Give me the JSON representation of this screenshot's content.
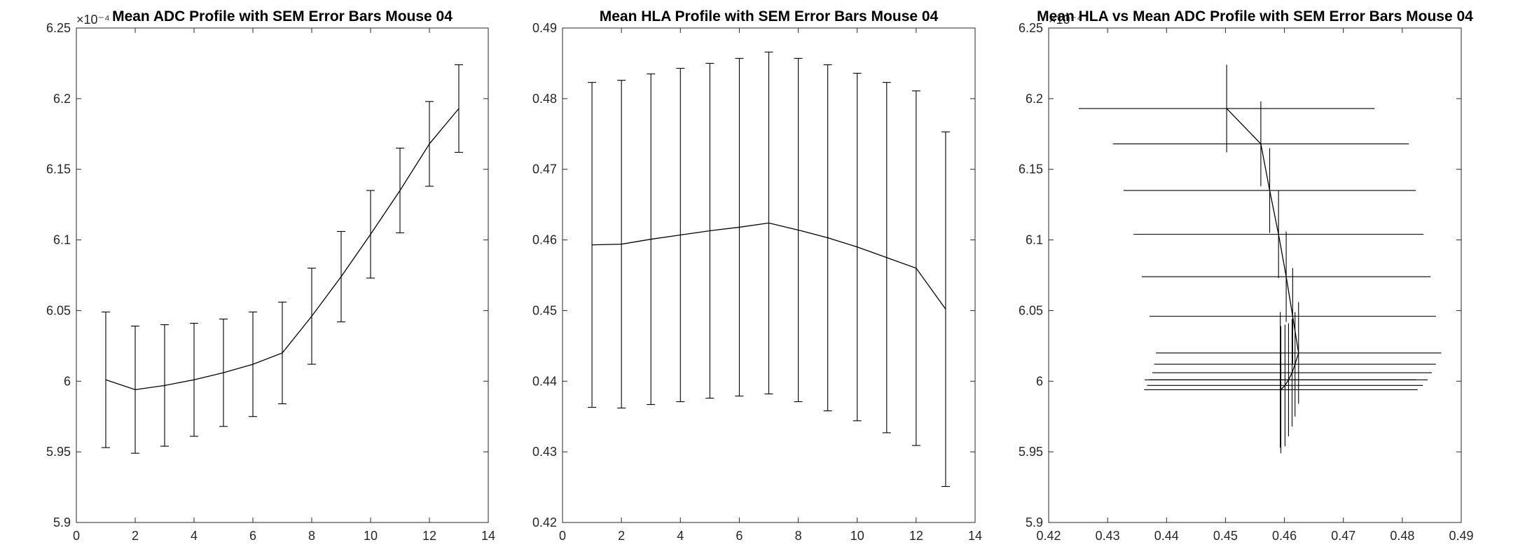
{
  "chart_data": [
    {
      "type": "line",
      "title": "Mean ADC Profile with SEM Error Bars Mouse 04",
      "xlabel": "",
      "ylabel": "",
      "xlim": [
        0,
        14
      ],
      "ylim": [
        5.9,
        6.25
      ],
      "y_exponent_label": "×10⁻⁴",
      "xticks": [
        0,
        2,
        4,
        6,
        8,
        10,
        12,
        14
      ],
      "yticks": [
        5.9,
        5.95,
        6,
        6.05,
        6.1,
        6.15,
        6.2,
        6.25
      ],
      "xtick_labels": [
        "0",
        "2",
        "4",
        "6",
        "8",
        "10",
        "12",
        "14"
      ],
      "ytick_labels": [
        "5.9",
        "5.95",
        "6",
        "6.05",
        "6.1",
        "6.15",
        "6.2",
        "6.25"
      ],
      "series": [
        {
          "x": [
            1,
            2,
            3,
            4,
            5,
            6,
            7,
            8,
            9,
            10,
            11,
            12,
            13
          ],
          "y": [
            6.001,
            5.994,
            5.997,
            6.001,
            6.006,
            6.012,
            6.02,
            6.046,
            6.074,
            6.104,
            6.135,
            6.168,
            6.193
          ],
          "y_err": [
            0.048,
            0.045,
            0.043,
            0.04,
            0.038,
            0.037,
            0.036,
            0.034,
            0.032,
            0.031,
            0.03,
            0.03,
            0.031
          ]
        }
      ],
      "grid": false,
      "error_bars": "SEM"
    },
    {
      "type": "line",
      "title": "Mean HLA Profile with SEM Error Bars Mouse 04",
      "xlabel": "",
      "ylabel": "",
      "xlim": [
        0,
        14
      ],
      "ylim": [
        0.42,
        0.49
      ],
      "xticks": [
        0,
        2,
        4,
        6,
        8,
        10,
        12,
        14
      ],
      "yticks": [
        0.42,
        0.43,
        0.44,
        0.45,
        0.46,
        0.47,
        0.48,
        0.49
      ],
      "xtick_labels": [
        "0",
        "2",
        "4",
        "6",
        "8",
        "10",
        "12",
        "14"
      ],
      "ytick_labels": [
        "0.42",
        "0.43",
        "0.44",
        "0.45",
        "0.46",
        "0.47",
        "0.48",
        "0.49"
      ],
      "series": [
        {
          "x": [
            1,
            2,
            3,
            4,
            5,
            6,
            7,
            8,
            9,
            10,
            11,
            12,
            13
          ],
          "y": [
            0.4593,
            0.4594,
            0.4601,
            0.4607,
            0.4613,
            0.4618,
            0.4624,
            0.4614,
            0.4603,
            0.459,
            0.4575,
            0.456,
            0.4502
          ],
          "y_err": [
            0.023,
            0.0232,
            0.0234,
            0.0236,
            0.0237,
            0.0239,
            0.0242,
            0.0243,
            0.0245,
            0.0246,
            0.0248,
            0.0251,
            0.0251
          ]
        }
      ],
      "grid": false,
      "error_bars": "SEM"
    },
    {
      "type": "scatter",
      "title": "Mean HLA vs Mean ADC Profile with SEM Error Bars Mouse 04",
      "xlabel": "",
      "ylabel": "",
      "xlim": [
        0.42,
        0.49
      ],
      "ylim": [
        5.9,
        6.25
      ],
      "y_exponent_label": "×10⁻⁴",
      "xticks": [
        0.42,
        0.43,
        0.44,
        0.45,
        0.46,
        0.47,
        0.48,
        0.49
      ],
      "yticks": [
        5.9,
        5.95,
        6,
        6.05,
        6.1,
        6.15,
        6.2,
        6.25
      ],
      "xtick_labels": [
        "0.42",
        "0.43",
        "0.44",
        "0.45",
        "0.46",
        "0.47",
        "0.48",
        "0.49"
      ],
      "ytick_labels": [
        "5.9",
        "5.95",
        "6",
        "6.05",
        "6.1",
        "6.15",
        "6.2",
        "6.25"
      ],
      "series": [
        {
          "x": [
            0.4593,
            0.4594,
            0.4601,
            0.4607,
            0.4613,
            0.4618,
            0.4624,
            0.4614,
            0.4603,
            0.459,
            0.4575,
            0.456,
            0.4502
          ],
          "y": [
            6.001,
            5.994,
            5.997,
            6.001,
            6.006,
            6.012,
            6.02,
            6.046,
            6.074,
            6.104,
            6.135,
            6.168,
            6.193
          ],
          "x_err": [
            0.023,
            0.0232,
            0.0234,
            0.0236,
            0.0237,
            0.0239,
            0.0242,
            0.0243,
            0.0245,
            0.0246,
            0.0248,
            0.0251,
            0.0251
          ],
          "y_err": [
            0.048,
            0.045,
            0.043,
            0.04,
            0.038,
            0.037,
            0.036,
            0.034,
            0.032,
            0.031,
            0.03,
            0.03,
            0.031
          ]
        }
      ],
      "grid": false,
      "error_bars": "SEM"
    }
  ]
}
